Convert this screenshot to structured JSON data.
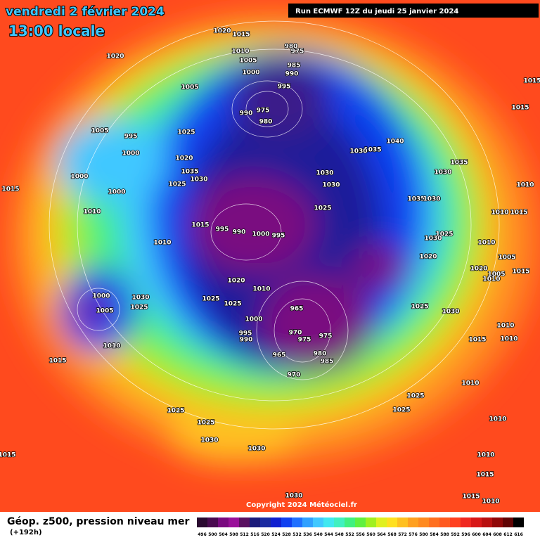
{
  "header": {
    "date": "vendredi 2 février 2024",
    "time": "13:00 locale",
    "run": "Run ECMWF 12Z du jeudi 25 janvier 2024"
  },
  "footer": {
    "title": "Géop. z500, pression niveau mer",
    "lead": "(+192h)",
    "copyright": "Copyright 2024 Météociel.fr"
  },
  "scale": {
    "labels": [
      496,
      500,
      504,
      508,
      512,
      516,
      520,
      524,
      528,
      532,
      536,
      540,
      544,
      548,
      552,
      556,
      560,
      564,
      568,
      572,
      576,
      580,
      584,
      588,
      592,
      596,
      600,
      604,
      608,
      612,
      616
    ],
    "colors": [
      "#2a0a30",
      "#4a0a50",
      "#7a0a80",
      "#9a109a",
      "#5a1060",
      "#1a1a7a",
      "#1a2aa0",
      "#1020d0",
      "#1040f0",
      "#2070ff",
      "#30a0ff",
      "#40c8ff",
      "#40e8f0",
      "#40f0c0",
      "#40f080",
      "#60f040",
      "#a0f020",
      "#e0f020",
      "#ffe020",
      "#ffc020",
      "#ffa020",
      "#ff8a20",
      "#ff7020",
      "#ff5a20",
      "#ff4020",
      "#f02820",
      "#d81818",
      "#b81010",
      "#900808",
      "#600404",
      "#000000"
    ]
  },
  "isobars": [
    1020,
    1015,
    980,
    975,
    1010,
    1005,
    985,
    1020,
    990,
    1000,
    1005,
    995,
    1015,
    975,
    990,
    980,
    1015,
    1005,
    995,
    1025,
    1040,
    1035,
    1030,
    1000,
    1020,
    1035,
    1035,
    1030,
    1030,
    1030,
    1000,
    1025,
    1030,
    1015,
    1000,
    1010,
    1035,
    1030,
    1025,
    1010,
    1010,
    1015,
    1015,
    995,
    990,
    1000,
    995,
    1025,
    1030,
    1010,
    1010,
    1020,
    1005,
    1020,
    1005,
    1015,
    1010,
    1020,
    1010,
    1025,
    1030,
    1000,
    1025,
    1025,
    965,
    1005,
    1025,
    1030,
    1000,
    1010,
    970,
    975,
    975,
    995,
    990,
    1015,
    1010,
    1010,
    980,
    965,
    985,
    1015,
    970,
    1010,
    1025,
    1025,
    1025,
    1010,
    1025,
    1030,
    1030,
    1015,
    1010,
    1015,
    1030,
    1015,
    1010
  ]
}
